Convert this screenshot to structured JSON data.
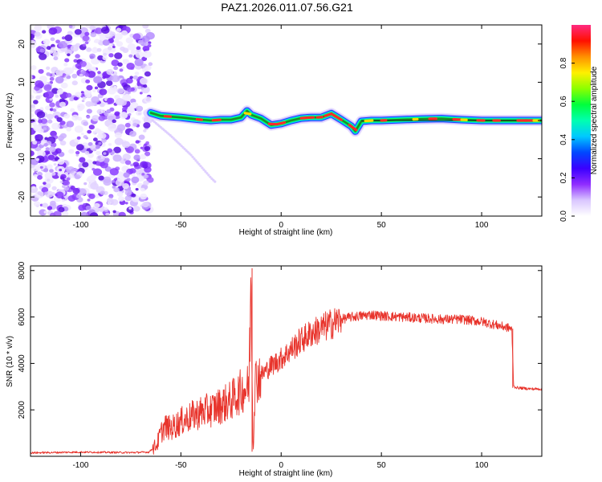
{
  "title": "PAZ1.2026.011.07.56.G21",
  "chart_data": [
    {
      "type": "heatmap",
      "xlabel": "Height of straight line (km)",
      "ylabel": "Frequency (Hz)",
      "xlim": [
        -125,
        130
      ],
      "ylim": [
        -25,
        25
      ],
      "xticks": [
        -100,
        -50,
        0,
        50,
        100
      ],
      "yticks": [
        20,
        10,
        0,
        -10,
        -20
      ],
      "xtick_labels": [
        "-100",
        "-50",
        "0",
        "50",
        "100"
      ],
      "ytick_labels": [
        "20",
        "10",
        "0",
        "-10",
        "-20"
      ],
      "noise_region": [
        -125,
        -65
      ],
      "main_trace": {
        "x": [
          -65,
          -60,
          -55,
          -50,
          -45,
          -40,
          -35,
          -30,
          -25,
          -20,
          -17,
          -15,
          -10,
          -5,
          0,
          5,
          10,
          15,
          20,
          25,
          30,
          35,
          37,
          40,
          45,
          50,
          60,
          70,
          80,
          90,
          100,
          110,
          120,
          130
        ],
        "y": [
          2,
          1.2,
          1,
          0.8,
          0.5,
          0.2,
          0,
          0.2,
          0.2,
          0.8,
          2.5,
          1.5,
          0.5,
          -1.2,
          -0.8,
          0,
          0.6,
          0.8,
          0.8,
          1.8,
          0.2,
          -1.5,
          -2.8,
          -0.2,
          0,
          0,
          0.2,
          0.4,
          0.5,
          0.2,
          0,
          0,
          0,
          0
        ]
      },
      "faint_tail": {
        "x": [
          -64,
          -55,
          -45,
          -40,
          -35,
          -33
        ],
        "y": [
          0,
          -4,
          -9,
          -12,
          -15,
          -16
        ]
      },
      "colorbar": {
        "label": "Normalized spectral amplitude",
        "ticks": [
          0.0,
          0.2,
          0.4,
          0.6,
          0.8
        ],
        "tick_labels": [
          "0.0",
          "0.2",
          "0.4",
          "0.6",
          "0.8"
        ],
        "range": [
          0,
          1
        ],
        "colors": [
          "#ffffff",
          "#d9c6ff",
          "#8f2cff",
          "#3a00ff",
          "#0048ff",
          "#00c8ff",
          "#00ffb0",
          "#00ff3c",
          "#8cff00",
          "#fff000",
          "#ff9000",
          "#ff1000",
          "#ff2a80"
        ]
      }
    },
    {
      "type": "line",
      "xlabel": "Height of straight line (km)",
      "ylabel": "SNR (10 * v/v)",
      "xlim": [
        -125,
        130
      ],
      "ylim": [
        0,
        8200
      ],
      "xticks": [
        -100,
        -50,
        0,
        50,
        100
      ],
      "yticks": [
        2000,
        4000,
        6000,
        8000
      ],
      "xtick_labels": [
        "-100",
        "-50",
        "0",
        "50",
        "100"
      ],
      "ytick_labels": [
        "2000",
        "4000",
        "6000",
        "8000"
      ],
      "color": "#e8342c",
      "series": {
        "x": [
          -125,
          -100,
          -75,
          -66,
          -62,
          -60,
          -58,
          -55,
          -50,
          -45,
          -40,
          -35,
          -30,
          -25,
          -20,
          -16,
          -15,
          -14,
          -13,
          -12,
          -10,
          -5,
          0,
          5,
          10,
          15,
          20,
          25,
          30,
          35,
          40,
          45,
          50,
          60,
          70,
          80,
          90,
          100,
          110,
          115,
          116,
          118,
          125,
          130
        ],
        "y": [
          150,
          180,
          160,
          180,
          500,
          1000,
          1300,
          1200,
          1500,
          1700,
          1900,
          2000,
          2200,
          2400,
          2800,
          3000,
          8100,
          200,
          3200,
          3400,
          3500,
          3900,
          4200,
          4600,
          5000,
          5300,
          5500,
          5700,
          5900,
          6000,
          6050,
          6100,
          6050,
          6000,
          5950,
          5900,
          5900,
          5800,
          5600,
          5500,
          3000,
          2950,
          2900,
          2900
        ]
      }
    }
  ]
}
